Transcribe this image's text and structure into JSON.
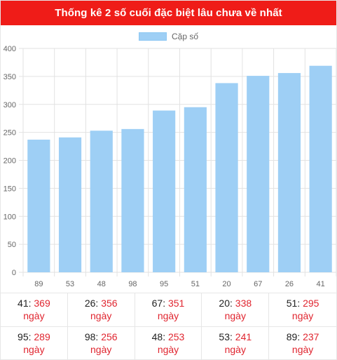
{
  "header": {
    "title": "Thống kê 2 số cuối đặc biệt lâu chưa về nhất"
  },
  "colors": {
    "header_bg": "#ef1c18",
    "bar_fill": "#9ecff5",
    "accent_text": "#e0252f"
  },
  "chart_data": {
    "type": "bar",
    "title": "",
    "legend_position": "top",
    "grid": true,
    "categories": [
      "89",
      "53",
      "48",
      "98",
      "95",
      "51",
      "20",
      "67",
      "26",
      "41"
    ],
    "series": [
      {
        "name": "Cặp số",
        "values": [
          237,
          241,
          253,
          256,
          289,
          295,
          338,
          351,
          356,
          369
        ]
      }
    ],
    "ylim": [
      0,
      400
    ],
    "yticks": [
      "0",
      "50",
      "100",
      "150",
      "200",
      "250",
      "300",
      "350",
      "400"
    ]
  },
  "stats": {
    "unit": "ngày",
    "items": [
      {
        "num": "41",
        "days": "369"
      },
      {
        "num": "26",
        "days": "356"
      },
      {
        "num": "67",
        "days": "351"
      },
      {
        "num": "20",
        "days": "338"
      },
      {
        "num": "51",
        "days": "295"
      },
      {
        "num": "95",
        "days": "289"
      },
      {
        "num": "98",
        "days": "256"
      },
      {
        "num": "48",
        "days": "253"
      },
      {
        "num": "53",
        "days": "241"
      },
      {
        "num": "89",
        "days": "237"
      }
    ]
  }
}
